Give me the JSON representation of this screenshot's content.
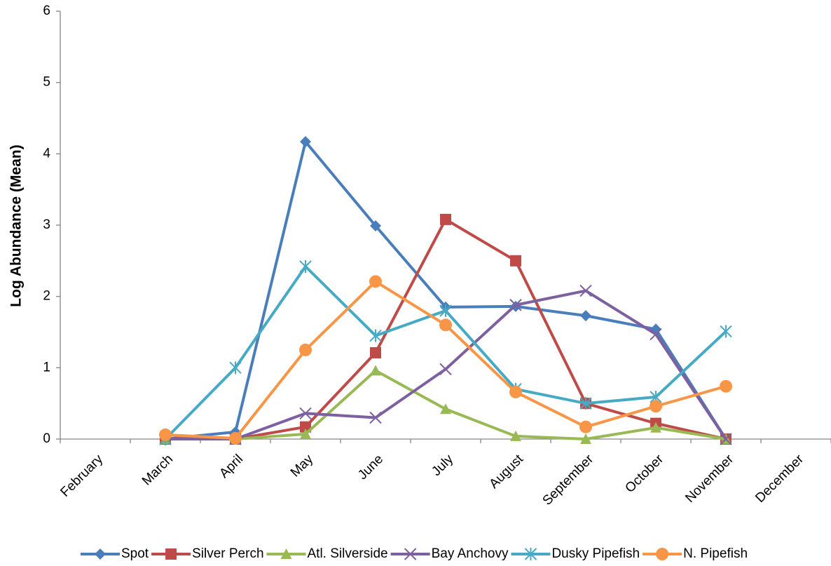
{
  "chart_data": {
    "type": "line",
    "y_label": "Log Abundance (Mean)",
    "categories": [
      "February",
      "March",
      "April",
      "May",
      "June",
      "July",
      "August",
      "September",
      "October",
      "November",
      "December"
    ],
    "ylim": [
      0,
      6
    ],
    "yticks": [
      0,
      1,
      2,
      3,
      4,
      5,
      6
    ],
    "grid": false,
    "legend": "bottom",
    "series": [
      {
        "name": "Spot",
        "color": "#4a7ebb",
        "marker": "diamond",
        "values": [
          null,
          0,
          0.1,
          4.17,
          2.99,
          1.85,
          1.86,
          1.73,
          1.54,
          0,
          null
        ]
      },
      {
        "name": "Silver Perch",
        "color": "#be4b48",
        "marker": "square",
        "values": [
          null,
          0,
          0,
          0.17,
          1.21,
          3.08,
          2.5,
          0.5,
          0.22,
          0,
          null
        ]
      },
      {
        "name": "Atl. Silverside",
        "color": "#98b954",
        "marker": "triangle",
        "values": [
          null,
          0,
          0,
          0.07,
          0.96,
          0.42,
          0.04,
          0,
          0.16,
          0,
          null
        ]
      },
      {
        "name": "Bay Anchovy",
        "color": "#7d60a0",
        "marker": "x",
        "values": [
          null,
          0,
          0,
          0.36,
          0.3,
          0.98,
          1.88,
          2.08,
          1.47,
          0,
          null
        ]
      },
      {
        "name": "Dusky Pipefish",
        "color": "#46aac5",
        "marker": "star",
        "values": [
          null,
          0,
          1.0,
          2.42,
          1.45,
          1.8,
          0.7,
          0.5,
          0.59,
          1.51,
          null
        ]
      },
      {
        "name": "N. Pipefish",
        "color": "#f79646",
        "marker": "circle",
        "values": [
          null,
          0.06,
          0.01,
          1.25,
          2.21,
          1.6,
          0.66,
          0.17,
          0.46,
          0.74,
          null
        ]
      }
    ]
  }
}
